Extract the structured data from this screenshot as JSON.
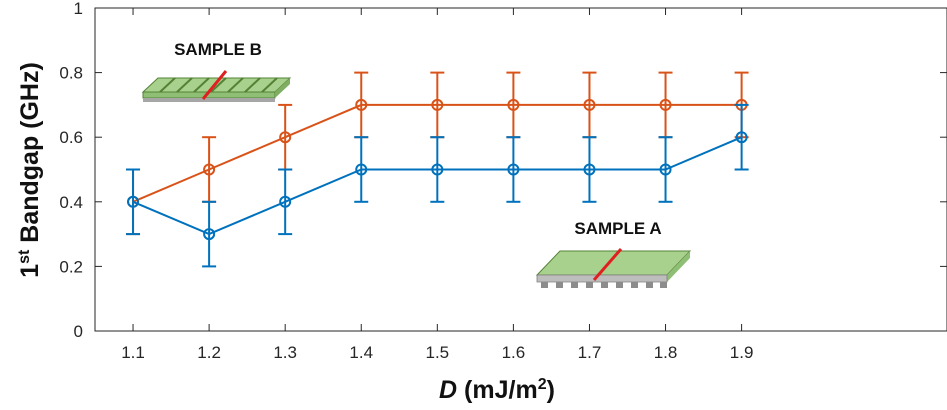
{
  "chart_data": {
    "type": "line",
    "xlabel": {
      "italic": "D",
      "rest": " (mJ/m",
      "sup": "2",
      "close": ")"
    },
    "ylabel": {
      "pre": "1",
      "sup": "st",
      "post": " Bandgap (GHz)"
    },
    "x": [
      1.1,
      1.2,
      1.3,
      1.4,
      1.5,
      1.6,
      1.7,
      1.8,
      1.9
    ],
    "xticks": [
      "1.1",
      "1.2",
      "1.3",
      "1.4",
      "1.5",
      "1.6",
      "1.7",
      "1.8",
      "1.9"
    ],
    "yticks": [
      "0",
      "0.2",
      "0.4",
      "0.6",
      "0.8",
      "1"
    ],
    "xlim": [
      1.05,
      2.17
    ],
    "ylim": [
      0,
      1
    ],
    "grid": false,
    "series": [
      {
        "key": "sample_b",
        "color": "#D95319",
        "values": [
          0.4,
          0.5,
          0.6,
          0.7,
          0.7,
          0.7,
          0.7,
          0.7,
          0.7
        ],
        "error": [
          0.1,
          0.1,
          0.1,
          0.1,
          0.1,
          0.1,
          0.1,
          0.1,
          0.1
        ]
      },
      {
        "key": "sample_a",
        "color": "#0072BD",
        "values": [
          0.4,
          0.3,
          0.4,
          0.5,
          0.5,
          0.5,
          0.5,
          0.5,
          0.6
        ],
        "error": [
          0.1,
          0.1,
          0.1,
          0.1,
          0.1,
          0.1,
          0.1,
          0.1,
          0.1
        ]
      }
    ],
    "annotations": {
      "sample_b_label": "SAMPLE B",
      "sample_a_label": "SAMPLE A"
    },
    "inset_colors": {
      "top": "#a9d18e",
      "edge": "#548235",
      "stripe": "#e02020",
      "base": "#9a9a9a"
    }
  }
}
